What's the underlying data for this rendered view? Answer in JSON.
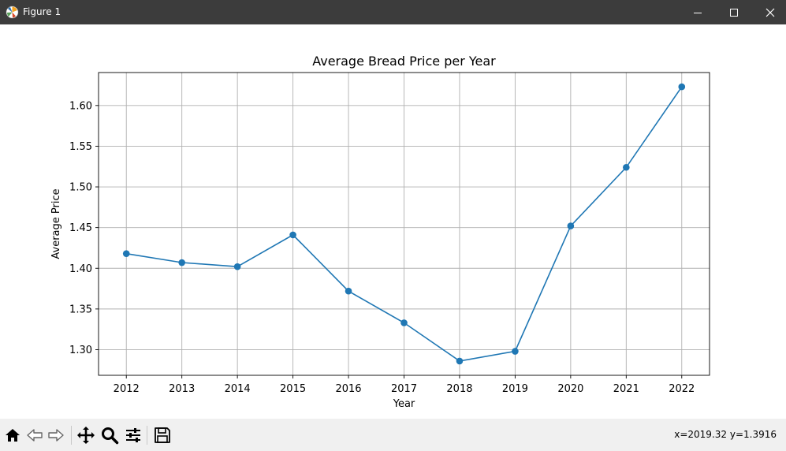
{
  "window": {
    "title": "Figure 1",
    "icons": [
      "matplotlib-icon",
      "minimize-icon",
      "maximize-icon",
      "close-icon"
    ]
  },
  "toolbar": {
    "buttons": [
      "home-icon",
      "back-icon",
      "forward-icon",
      "pan-icon",
      "zoom-icon",
      "configure-icon",
      "save-icon"
    ],
    "coords": "x=2019.32 y=1.3916"
  },
  "colors": {
    "line": "#1f77b4",
    "grid": "#b0b0b0",
    "titlebar": "#3c3c3c",
    "toolbar": "#f0f0f0"
  },
  "chart_data": {
    "type": "line",
    "title": "Average Bread Price per Year",
    "xlabel": "Year",
    "ylabel": "Average Price",
    "x": [
      2012,
      2013,
      2014,
      2015,
      2016,
      2017,
      2018,
      2019,
      2020,
      2021,
      2022
    ],
    "series": [
      {
        "values": [
          1.418,
          1.407,
          1.402,
          1.441,
          1.372,
          1.333,
          1.286,
          1.298,
          1.452,
          1.524,
          1.623
        ],
        "marker": "circle"
      }
    ],
    "xlim": [
      2011.5,
      2022.5
    ],
    "ylim": [
      1.2685,
      1.6405
    ],
    "xticks": [
      "2012",
      "2013",
      "2014",
      "2015",
      "2016",
      "2017",
      "2018",
      "2019",
      "2020",
      "2021",
      "2022"
    ],
    "yticks": [
      "1.30",
      "1.35",
      "1.40",
      "1.45",
      "1.50",
      "1.55",
      "1.60"
    ],
    "grid": true,
    "legend": "none"
  }
}
